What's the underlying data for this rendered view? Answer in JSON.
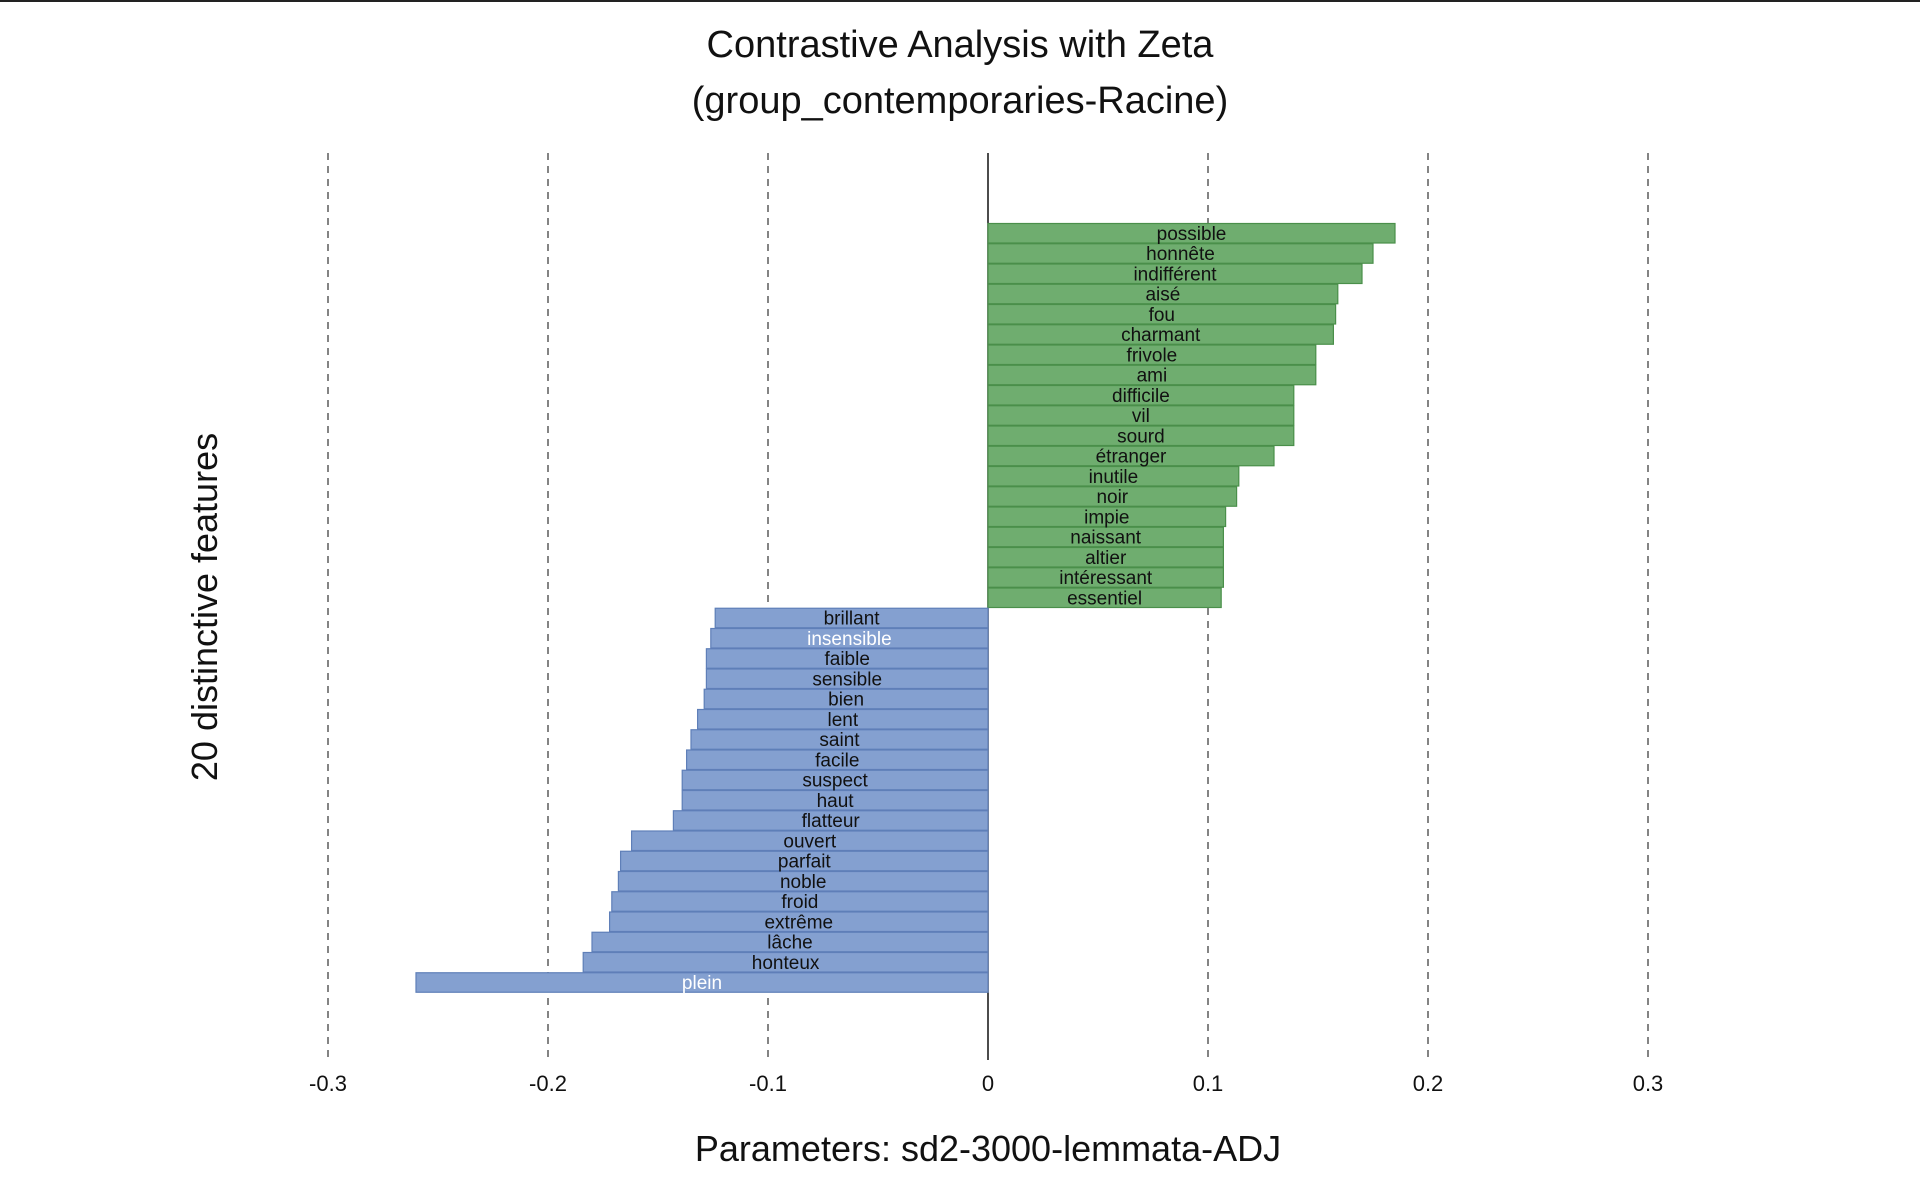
{
  "chart_data": {
    "type": "bar",
    "orientation": "horizontal",
    "title": "Contrastive Analysis with Zeta",
    "subtitle": "(group_contemporaries-Racine)",
    "xlabel": "Parameters: sd2-3000-lemmata-ADJ",
    "ylabel": "20 distinctive features",
    "xlim": [
      -0.3,
      0.3
    ],
    "x_ticks": [
      "-0.3",
      "-0.2",
      "-0.1",
      "0",
      "0.1",
      "0.2",
      "0.3"
    ],
    "x_tick_values": [
      -0.3,
      -0.2,
      -0.1,
      0,
      0.1,
      0.2,
      0.3
    ],
    "grid": "vertical dashed at ticks",
    "colors": {
      "positive": "#6fad6f",
      "positive_edge": "#4a8f4a",
      "negative": "#84a0d0",
      "negative_edge": "#5f7fb8"
    },
    "categories": [
      "possible",
      "honnête",
      "indifférent",
      "aisé",
      "fou",
      "charmant",
      "frivole",
      "ami",
      "difficile",
      "vil",
      "sourd",
      "étranger",
      "inutile",
      "noir",
      "impie",
      "naissant",
      "altier",
      "intéressant",
      "essentiel",
      "brillant",
      "insensible",
      "faible",
      "sensible",
      "bien",
      "lent",
      "saint",
      "facile",
      "suspect",
      "haut",
      "flatteur",
      "ouvert",
      "parfait",
      "noble",
      "froid",
      "extrême",
      "lâche",
      "honteux",
      "plein"
    ],
    "values": [
      0.185,
      0.175,
      0.17,
      0.159,
      0.158,
      0.157,
      0.149,
      0.149,
      0.139,
      0.139,
      0.139,
      0.13,
      0.114,
      0.113,
      0.108,
      0.107,
      0.107,
      0.107,
      0.106,
      -0.124,
      -0.126,
      -0.128,
      -0.128,
      -0.129,
      -0.132,
      -0.135,
      -0.137,
      -0.139,
      -0.139,
      -0.143,
      -0.162,
      -0.167,
      -0.168,
      -0.171,
      -0.172,
      -0.18,
      -0.184,
      -0.26
    ],
    "light_label_categories": [
      "insensible",
      "plein"
    ]
  }
}
